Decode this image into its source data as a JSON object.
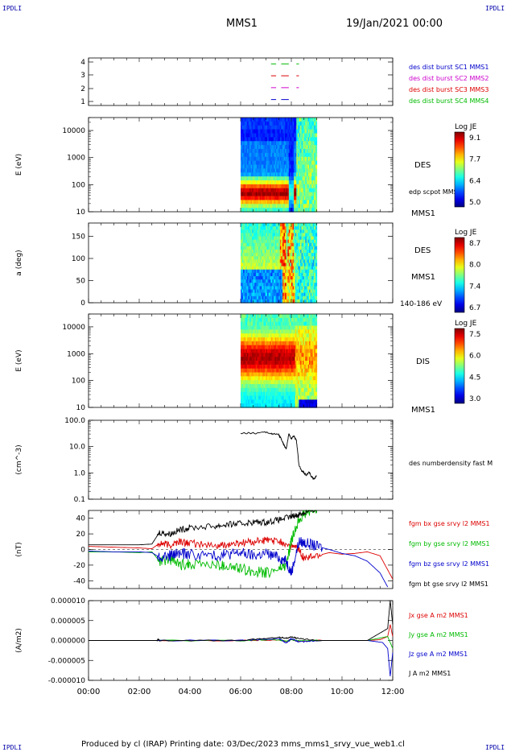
{
  "header": {
    "corner_tl": "IPDLI",
    "corner_tr": "IPDLI",
    "corner_bl": "IPDLI",
    "corner_br": "IPDLI",
    "title": "MMS1",
    "date": "19/Jan/2021 00:00"
  },
  "footer": {
    "text": "Produced by cl (IRAP)   Printing date: 03/Dec/2023   mms_mms1_srvy_vue_web1.cl"
  },
  "colors": {
    "mms1": "#0000cc",
    "mms2": "#cc00cc",
    "mms3": "#dd0000",
    "mms4": "#00bb00",
    "black": "#000000"
  },
  "chart_data": [
    {
      "type": "line",
      "panel": "availability",
      "ylim": [
        0.5,
        4.5
      ],
      "yticks": [
        "4",
        "3",
        "2",
        "1"
      ],
      "series": [
        {
          "name": "des dist burst SC1 MMS1",
          "y": 1,
          "segments": [
            [
              7.2,
              7.4
            ],
            [
              7.6,
              7.9
            ]
          ]
        },
        {
          "name": "des dist burst SC2 MMS2",
          "y": 2,
          "segments": [
            [
              7.2,
              7.4
            ],
            [
              7.6,
              7.9
            ],
            [
              8.2,
              8.3
            ]
          ]
        },
        {
          "name": "des dist burst SC3 MMS3",
          "y": 3,
          "segments": [
            [
              7.2,
              7.4
            ],
            [
              7.6,
              7.9
            ],
            [
              8.2,
              8.3
            ]
          ]
        },
        {
          "name": "des dist burst SC4 MMS4",
          "y": 4,
          "segments": [
            [
              7.2,
              7.4
            ],
            [
              7.6,
              7.9
            ],
            [
              8.2,
              8.3
            ]
          ]
        }
      ]
    },
    {
      "type": "heatmap",
      "panel": "des-energy",
      "ylabel": "E (eV)",
      "yscale": "log",
      "ylim": [
        10,
        30000
      ],
      "yticks": [
        "10000",
        "1000",
        "100",
        "10"
      ],
      "data_range_hours": [
        6.0,
        9.0
      ],
      "label": "DES",
      "note": "edp scpot MMS1",
      "sublabel": "MMS1",
      "colorbar": {
        "title": "Log JE",
        "ticks": [
          "9.1",
          "7.7",
          "6.4",
          "5.0"
        ]
      }
    },
    {
      "type": "heatmap",
      "panel": "des-pitch",
      "ylabel": "a (deg)",
      "ylim": [
        0,
        180
      ],
      "yticks": [
        "150",
        "100",
        "50",
        "0"
      ],
      "data_range_hours": [
        6.0,
        9.0
      ],
      "label": "DES",
      "sublabel": "MMS1",
      "energy_range": "140-186 eV",
      "colorbar": {
        "title": "Log JE",
        "ticks": [
          "8.7",
          "8.0",
          "7.4",
          "6.7"
        ]
      }
    },
    {
      "type": "heatmap",
      "panel": "dis-energy",
      "ylabel": "E (eV)",
      "yscale": "log",
      "ylim": [
        10,
        30000
      ],
      "yticks": [
        "10000",
        "1000",
        "100",
        "10"
      ],
      "data_range_hours": [
        6.0,
        9.0
      ],
      "label": "DIS",
      "sublabel": "MMS1",
      "colorbar": {
        "title": "Log JE",
        "ticks": [
          "7.5",
          "6.0",
          "4.5",
          "3.0"
        ]
      }
    },
    {
      "type": "line",
      "panel": "density",
      "ylabel": "(cm^-3)",
      "yscale": "log",
      "ylim": [
        0.1,
        100
      ],
      "yticks": [
        "100.0",
        "10.0",
        "1.0",
        "0.1"
      ],
      "series": [
        {
          "name": "des numberdensity fast M",
          "color": "#000000",
          "x": [
            6.0,
            6.5,
            7.0,
            7.3,
            7.5,
            7.6,
            7.7,
            7.8,
            7.9,
            8.0,
            8.1,
            8.2,
            8.3,
            8.4,
            8.5,
            8.6,
            8.7,
            8.8,
            8.9,
            9.0
          ],
          "y": [
            33,
            32,
            35,
            30,
            28,
            20,
            12,
            8,
            30,
            20,
            25,
            18,
            2.0,
            1.2,
            1.0,
            0.8,
            1.1,
            0.7,
            0.6,
            0.8
          ]
        }
      ]
    },
    {
      "type": "line",
      "panel": "fgm",
      "ylabel": "(nT)",
      "ylim": [
        -50,
        50
      ],
      "yticks": [
        "40",
        "20",
        "0",
        "-20",
        "-40"
      ],
      "series": [
        {
          "name": "fgm bx gse srvy l2 MMS1",
          "color": "#dd0000",
          "x": [
            0,
            1,
            2,
            2.5,
            2.8,
            3.2,
            3.6,
            4.0,
            5.0,
            5.5,
            6.0,
            6.5,
            7.0,
            7.5,
            8.0,
            8.3,
            8.5,
            9.0,
            9.5,
            10,
            10.5,
            11,
            11.5,
            12
          ],
          "y": [
            4,
            3,
            2,
            1,
            8,
            5,
            10,
            8,
            4,
            6,
            8,
            10,
            12,
            10,
            5,
            0,
            -12,
            -8,
            -4,
            -6,
            -5,
            -3,
            -8,
            -38
          ]
        },
        {
          "name": "fgm by gse srvy l2 MMS1",
          "color": "#00bb00",
          "x": [
            0,
            1,
            2,
            2.5,
            2.8,
            3.2,
            3.6,
            4.0,
            5.0,
            5.5,
            6.0,
            6.5,
            7.0,
            7.5,
            7.8,
            8.0,
            8.3,
            8.6,
            9.0
          ],
          "y": [
            -3,
            -3,
            -4,
            -3,
            -15,
            -12,
            -20,
            -18,
            -20,
            -22,
            -25,
            -28,
            -30,
            -25,
            -20,
            10,
            40,
            48,
            50
          ]
        },
        {
          "name": "fgm bz gse srvy l2 MMS1",
          "color": "#0000cc",
          "x": [
            0,
            1,
            2,
            2.5,
            2.8,
            3.2,
            3.6,
            4.0,
            5.0,
            5.5,
            6.0,
            6.5,
            7.0,
            7.5,
            7.8,
            8.0,
            8.3,
            8.6,
            9.0,
            9.5,
            10,
            10.5,
            11,
            11.5,
            11.8
          ],
          "y": [
            -2,
            -3,
            -3,
            -4,
            -10,
            -8,
            -5,
            -6,
            -8,
            -6,
            -4,
            -8,
            -5,
            -10,
            -15,
            -30,
            10,
            8,
            4,
            0,
            -5,
            -8,
            -15,
            -30,
            -48
          ]
        },
        {
          "name": "fgm bt gse srvy l2 MMS1",
          "color": "#000000",
          "x": [
            0,
            1,
            2,
            2.5,
            2.8,
            3.2,
            3.6,
            4.0,
            5.0,
            5.5,
            6.0,
            6.5,
            7.0,
            7.5,
            8.0,
            8.3,
            8.6,
            9.0
          ],
          "y": [
            6,
            6,
            6,
            7,
            22,
            20,
            25,
            28,
            30,
            32,
            33,
            35,
            35,
            38,
            42,
            45,
            48,
            52
          ]
        }
      ]
    },
    {
      "type": "line",
      "panel": "current",
      "ylabel": "(A/m2)",
      "ylim": [
        -1e-05,
        1e-05
      ],
      "yticks": [
        "0.000010",
        "0.000005",
        "0.000000",
        "-0.000005",
        "-0.000010"
      ],
      "series": [
        {
          "name": "Jx gse A m2 MMS1",
          "color": "#dd0000",
          "x": [
            0,
            6,
            7.5,
            7.8,
            8.0,
            8.3,
            9,
            11,
            11.5,
            11.8,
            11.9,
            12
          ],
          "y": [
            0,
            0,
            2e-07,
            -3e-07,
            3e-07,
            -2e-07,
            0,
            0,
            2e-07,
            1e-06,
            4e-06,
            1e-06
          ]
        },
        {
          "name": "Jy gse A m2 MMS1",
          "color": "#00bb00",
          "x": [
            0,
            6,
            7.5,
            7.8,
            8.0,
            8.3,
            9,
            11,
            11.8,
            12
          ],
          "y": [
            0,
            0,
            2e-07,
            -2e-07,
            2e-07,
            -1e-07,
            0,
            0,
            1e-06,
            -2e-06
          ]
        },
        {
          "name": "Jz gse A m2 MMS1",
          "color": "#0000cc",
          "x": [
            0,
            6,
            7.5,
            7.8,
            8.0,
            8.3,
            9,
            11,
            11.6,
            11.8,
            11.9,
            12
          ],
          "y": [
            0,
            0,
            5e-07,
            -6e-07,
            5e-07,
            -4e-07,
            0,
            0,
            -5e-07,
            -2e-06,
            -9e-06,
            -3e-06
          ]
        },
        {
          "name": "J A m2 MMS1",
          "color": "#000000",
          "x": [
            0,
            2.7,
            2.75,
            2.8,
            6,
            7.5,
            7.8,
            8.0,
            8.3,
            9,
            11,
            11.8,
            11.9,
            12
          ],
          "y": [
            0,
            0,
            3e-07,
            0,
            0,
            8e-07,
            6e-07,
            9e-07,
            5e-07,
            0,
            0,
            3e-06,
            1e-05,
            4e-06
          ]
        }
      ]
    }
  ],
  "xaxis": {
    "range_hours": [
      0,
      12
    ],
    "ticks": [
      "00:00",
      "02:00",
      "04:00",
      "06:00",
      "08:00",
      "10:00",
      "12:00"
    ]
  }
}
